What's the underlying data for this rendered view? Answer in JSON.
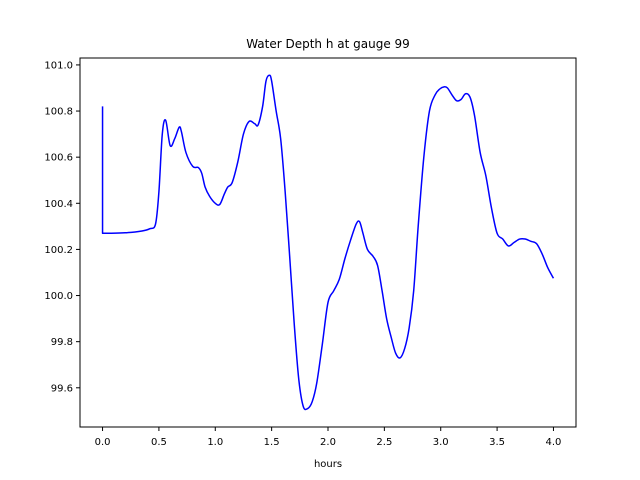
{
  "chart_data": {
    "type": "line",
    "title": "Water Depth h at gauge 99",
    "xlabel": "hours",
    "ylabel": "",
    "xlim": [
      -0.2,
      4.2
    ],
    "ylim": [
      99.43,
      101.03
    ],
    "grid": false,
    "legend": "none",
    "xticks": [
      0.0,
      0.5,
      1.0,
      1.5,
      2.0,
      2.5,
      3.0,
      3.5,
      4.0
    ],
    "xtick_labels": [
      "0.0",
      "0.5",
      "1.0",
      "1.5",
      "2.0",
      "2.5",
      "3.0",
      "3.5",
      "4.0"
    ],
    "yticks": [
      99.6,
      99.8,
      100.0,
      100.2,
      100.4,
      100.6,
      100.8,
      101.0
    ],
    "ytick_labels": [
      "99.6",
      "99.8",
      "100.0",
      "100.2",
      "100.4",
      "100.6",
      "100.8",
      "101.0"
    ],
    "series": [
      {
        "name": "",
        "color": "#0000ff",
        "x": [
          0.0,
          0.0,
          0.05,
          0.2,
          0.35,
          0.42,
          0.47,
          0.5,
          0.53,
          0.56,
          0.6,
          0.64,
          0.68,
          0.7,
          0.74,
          0.8,
          0.85,
          0.88,
          0.91,
          0.95,
          1.0,
          1.04,
          1.08,
          1.11,
          1.15,
          1.2,
          1.25,
          1.3,
          1.35,
          1.38,
          1.42,
          1.45,
          1.48,
          1.5,
          1.54,
          1.58,
          1.62,
          1.66,
          1.7,
          1.74,
          1.78,
          1.82,
          1.86,
          1.9,
          1.95,
          2.0,
          2.05,
          2.1,
          2.15,
          2.2,
          2.25,
          2.28,
          2.31,
          2.35,
          2.4,
          2.44,
          2.48,
          2.52,
          2.56,
          2.6,
          2.64,
          2.68,
          2.72,
          2.76,
          2.8,
          2.85,
          2.9,
          2.95,
          2.99,
          3.03,
          3.06,
          3.1,
          3.14,
          3.18,
          3.22,
          3.26,
          3.3,
          3.35,
          3.4,
          3.45,
          3.5,
          3.55,
          3.6,
          3.65,
          3.7,
          3.75,
          3.8,
          3.85,
          3.9,
          3.95,
          4.0
        ],
        "y": [
          100.82,
          100.27,
          100.27,
          100.272,
          100.28,
          100.29,
          100.31,
          100.45,
          100.7,
          100.76,
          100.65,
          100.68,
          100.73,
          100.71,
          100.62,
          100.56,
          100.555,
          100.53,
          100.47,
          100.43,
          100.4,
          100.395,
          100.44,
          100.47,
          100.49,
          100.58,
          100.7,
          100.755,
          100.745,
          100.74,
          100.82,
          100.93,
          100.955,
          100.93,
          100.8,
          100.68,
          100.45,
          100.17,
          99.88,
          99.64,
          99.52,
          99.51,
          99.54,
          99.62,
          99.79,
          99.97,
          100.02,
          100.07,
          100.16,
          100.24,
          100.31,
          100.32,
          100.27,
          100.2,
          100.17,
          100.13,
          100.02,
          99.9,
          99.82,
          99.75,
          99.73,
          99.77,
          99.86,
          100.02,
          100.3,
          100.6,
          100.8,
          100.87,
          100.895,
          100.905,
          100.9,
          100.87,
          100.845,
          100.85,
          100.875,
          100.86,
          100.78,
          100.62,
          100.52,
          100.38,
          100.27,
          100.245,
          100.215,
          100.23,
          100.245,
          100.245,
          100.235,
          100.225,
          100.18,
          100.12,
          100.075
        ]
      }
    ]
  }
}
